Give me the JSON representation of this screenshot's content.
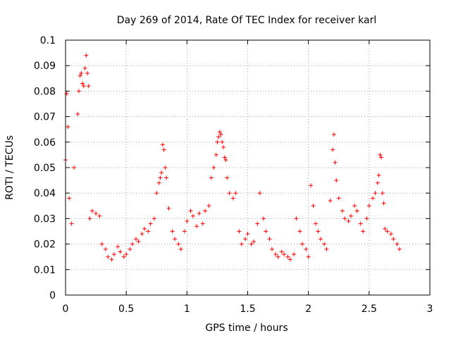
{
  "chart_data": {
    "type": "scatter",
    "title": "Day 269 of 2014, Rate Of TEC Index for receiver karl",
    "xlabel": "GPS time / hours",
    "ylabel": "ROTI / TECUs",
    "xlim": [
      0,
      3
    ],
    "ylim": [
      0,
      0.1
    ],
    "grid": true,
    "marker": "+",
    "color": "#ff0000",
    "x_ticks": [
      "0",
      "0.5",
      "1",
      "1.5",
      "2",
      "2.5",
      "3"
    ],
    "y_ticks": [
      "0",
      "0.01",
      "0.02",
      "0.03",
      "0.04",
      "0.05",
      "0.06",
      "0.07",
      "0.08",
      "0.09",
      "0.1"
    ],
    "series": [
      {
        "name": "ROTI",
        "x": [
          0.0,
          0.01,
          0.02,
          0.03,
          0.05,
          0.07,
          0.1,
          0.11,
          0.12,
          0.13,
          0.14,
          0.15,
          0.16,
          0.17,
          0.18,
          0.19,
          0.2,
          0.22,
          0.25,
          0.28,
          0.3,
          0.33,
          0.35,
          0.38,
          0.4,
          0.43,
          0.45,
          0.48,
          0.5,
          0.53,
          0.55,
          0.58,
          0.6,
          0.63,
          0.65,
          0.68,
          0.7,
          0.73,
          0.75,
          0.77,
          0.78,
          0.79,
          0.8,
          0.81,
          0.82,
          0.83,
          0.85,
          0.88,
          0.9,
          0.93,
          0.95,
          0.98,
          1.0,
          1.03,
          1.05,
          1.08,
          1.1,
          1.13,
          1.15,
          1.18,
          1.2,
          1.22,
          1.24,
          1.25,
          1.26,
          1.27,
          1.28,
          1.29,
          1.3,
          1.31,
          1.32,
          1.33,
          1.35,
          1.38,
          1.4,
          1.43,
          1.45,
          1.48,
          1.5,
          1.53,
          1.55,
          1.58,
          1.6,
          1.63,
          1.65,
          1.68,
          1.7,
          1.73,
          1.75,
          1.78,
          1.8,
          1.83,
          1.85,
          1.88,
          1.9,
          1.93,
          1.95,
          1.98,
          2.0,
          2.02,
          2.04,
          2.06,
          2.08,
          2.1,
          2.13,
          2.15,
          2.18,
          2.2,
          2.21,
          2.22,
          2.23,
          2.25,
          2.28,
          2.3,
          2.33,
          2.35,
          2.38,
          2.4,
          2.43,
          2.45,
          2.48,
          2.5,
          2.53,
          2.55,
          2.57,
          2.58,
          2.59,
          2.6,
          2.61,
          2.62,
          2.63,
          2.65,
          2.68,
          2.7,
          2.73,
          2.75
        ],
        "y": [
          0.053,
          0.079,
          0.066,
          0.038,
          0.028,
          0.05,
          0.071,
          0.08,
          0.086,
          0.087,
          0.083,
          0.082,
          0.089,
          0.094,
          0.087,
          0.082,
          0.03,
          0.033,
          0.032,
          0.031,
          0.02,
          0.018,
          0.015,
          0.014,
          0.016,
          0.019,
          0.017,
          0.015,
          0.016,
          0.018,
          0.02,
          0.022,
          0.021,
          0.024,
          0.026,
          0.025,
          0.028,
          0.03,
          0.04,
          0.044,
          0.046,
          0.048,
          0.059,
          0.057,
          0.05,
          0.046,
          0.034,
          0.025,
          0.022,
          0.02,
          0.018,
          0.025,
          0.029,
          0.033,
          0.031,
          0.027,
          0.032,
          0.028,
          0.033,
          0.035,
          0.046,
          0.05,
          0.055,
          0.06,
          0.062,
          0.064,
          0.063,
          0.06,
          0.058,
          0.054,
          0.053,
          0.046,
          0.04,
          0.038,
          0.04,
          0.025,
          0.02,
          0.022,
          0.024,
          0.02,
          0.021,
          0.028,
          0.04,
          0.03,
          0.025,
          0.022,
          0.018,
          0.016,
          0.015,
          0.017,
          0.016,
          0.015,
          0.014,
          0.016,
          0.03,
          0.025,
          0.02,
          0.018,
          0.015,
          0.043,
          0.035,
          0.028,
          0.025,
          0.022,
          0.02,
          0.018,
          0.037,
          0.057,
          0.063,
          0.052,
          0.045,
          0.038,
          0.033,
          0.03,
          0.029,
          0.031,
          0.035,
          0.033,
          0.028,
          0.025,
          0.03,
          0.035,
          0.038,
          0.04,
          0.044,
          0.047,
          0.055,
          0.054,
          0.04,
          0.036,
          0.026,
          0.025,
          0.024,
          0.022,
          0.02,
          0.018
        ]
      }
    ]
  }
}
